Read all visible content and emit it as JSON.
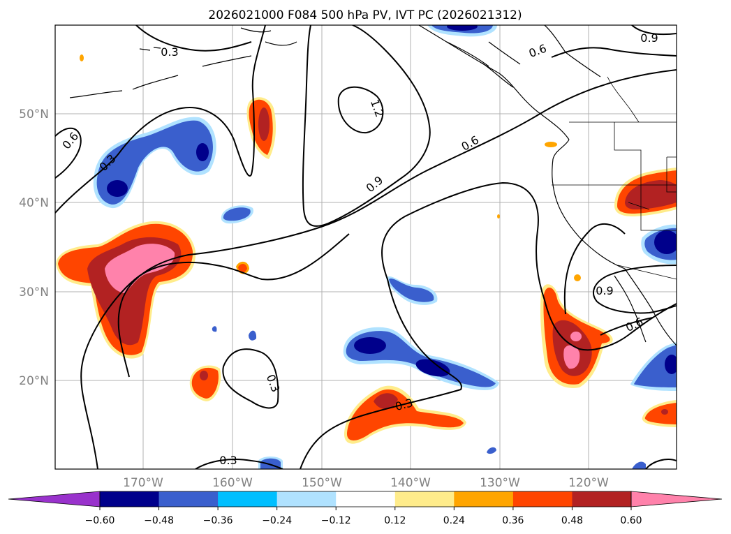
{
  "title": "2026021000 F084 500 hPa PV, IVT PC (2026021312)",
  "latitude_labels": [
    "50°N",
    "40°N",
    "30°N",
    "20°N"
  ],
  "longitude_labels": [
    "170°W",
    "160°W",
    "150°W",
    "140°W",
    "130°W",
    "120°W"
  ],
  "contour_labels": [
    "0.3",
    "0.6",
    "0.3",
    "1.2",
    "0.9",
    "0.6",
    "0.6",
    "0.9",
    "0.9",
    "0.6",
    "0.3",
    "0.3",
    "0.3"
  ],
  "colorbar": {
    "ticks": [
      "−0.60",
      "−0.48",
      "−0.36",
      "−0.24",
      "−0.12",
      "0.12",
      "0.24",
      "0.36",
      "0.48",
      "0.60"
    ],
    "colors": [
      "#9932cc",
      "#00008b",
      "#3a5fcd",
      "#00bfff",
      "#b0e2ff",
      "#ffffff",
      "#ffec8b",
      "#ffa500",
      "#ff4500",
      "#b22222",
      "#ff82ab"
    ]
  },
  "colors": {
    "neg_dark": "#00008b",
    "neg_mid": "#3a5fcd",
    "neg_light": "#00bfff",
    "pos_yellow": "#ffec8b",
    "pos_orange": "#ffa500",
    "pos_red": "#ff4500",
    "pos_dark": "#b22222",
    "pos_pink": "#ff82ab"
  }
}
